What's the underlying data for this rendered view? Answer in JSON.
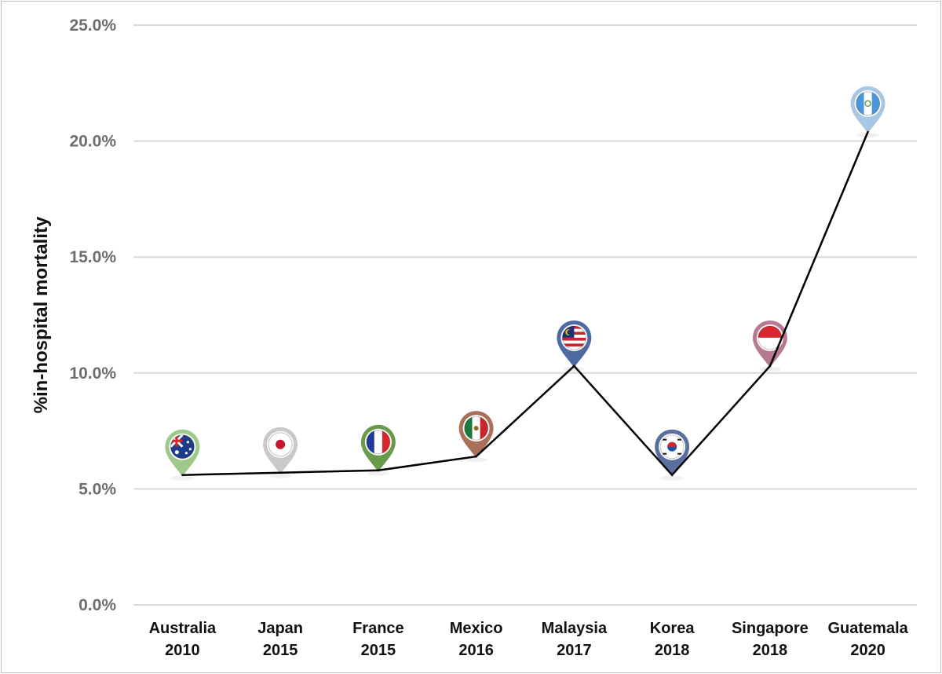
{
  "chart_data": {
    "type": "line",
    "title": "",
    "xlabel": "",
    "ylabel": "%in-hospital mortality",
    "ylim": [
      0,
      25
    ],
    "yticks": [
      "0.0%",
      "5.0%",
      "10.0%",
      "15.0%",
      "20.0%",
      "25.0%"
    ],
    "grid": true,
    "categories": [
      {
        "country": "Australia",
        "year": "2010"
      },
      {
        "country": "Japan",
        "year": "2015"
      },
      {
        "country": "France",
        "year": "2015"
      },
      {
        "country": "Mexico",
        "year": "2016"
      },
      {
        "country": "Malaysia",
        "year": "2017"
      },
      {
        "country": "Korea",
        "year": "2018"
      },
      {
        "country": "Singapore",
        "year": "2018"
      },
      {
        "country": "Guatemala",
        "year": "2020"
      }
    ],
    "series": [
      {
        "name": "in-hospital mortality",
        "values": [
          5.6,
          5.7,
          5.8,
          6.4,
          10.3,
          5.6,
          10.3,
          20.4
        ]
      }
    ],
    "markers": [
      {
        "icon": "australia-flag-pin-icon",
        "color": "#9fc98a"
      },
      {
        "icon": "japan-flag-pin-icon",
        "color": "#c9c9c9"
      },
      {
        "icon": "france-flag-pin-icon",
        "color": "#6b9a4b"
      },
      {
        "icon": "mexico-flag-pin-icon",
        "color": "#a9715a"
      },
      {
        "icon": "malaysia-flag-pin-icon",
        "color": "#4e6aa3"
      },
      {
        "icon": "korea-flag-pin-icon",
        "color": "#5a6fa0"
      },
      {
        "icon": "singapore-flag-pin-icon",
        "color": "#b77a92"
      },
      {
        "icon": "guatemala-flag-pin-icon",
        "color": "#a9c7e2"
      }
    ]
  }
}
